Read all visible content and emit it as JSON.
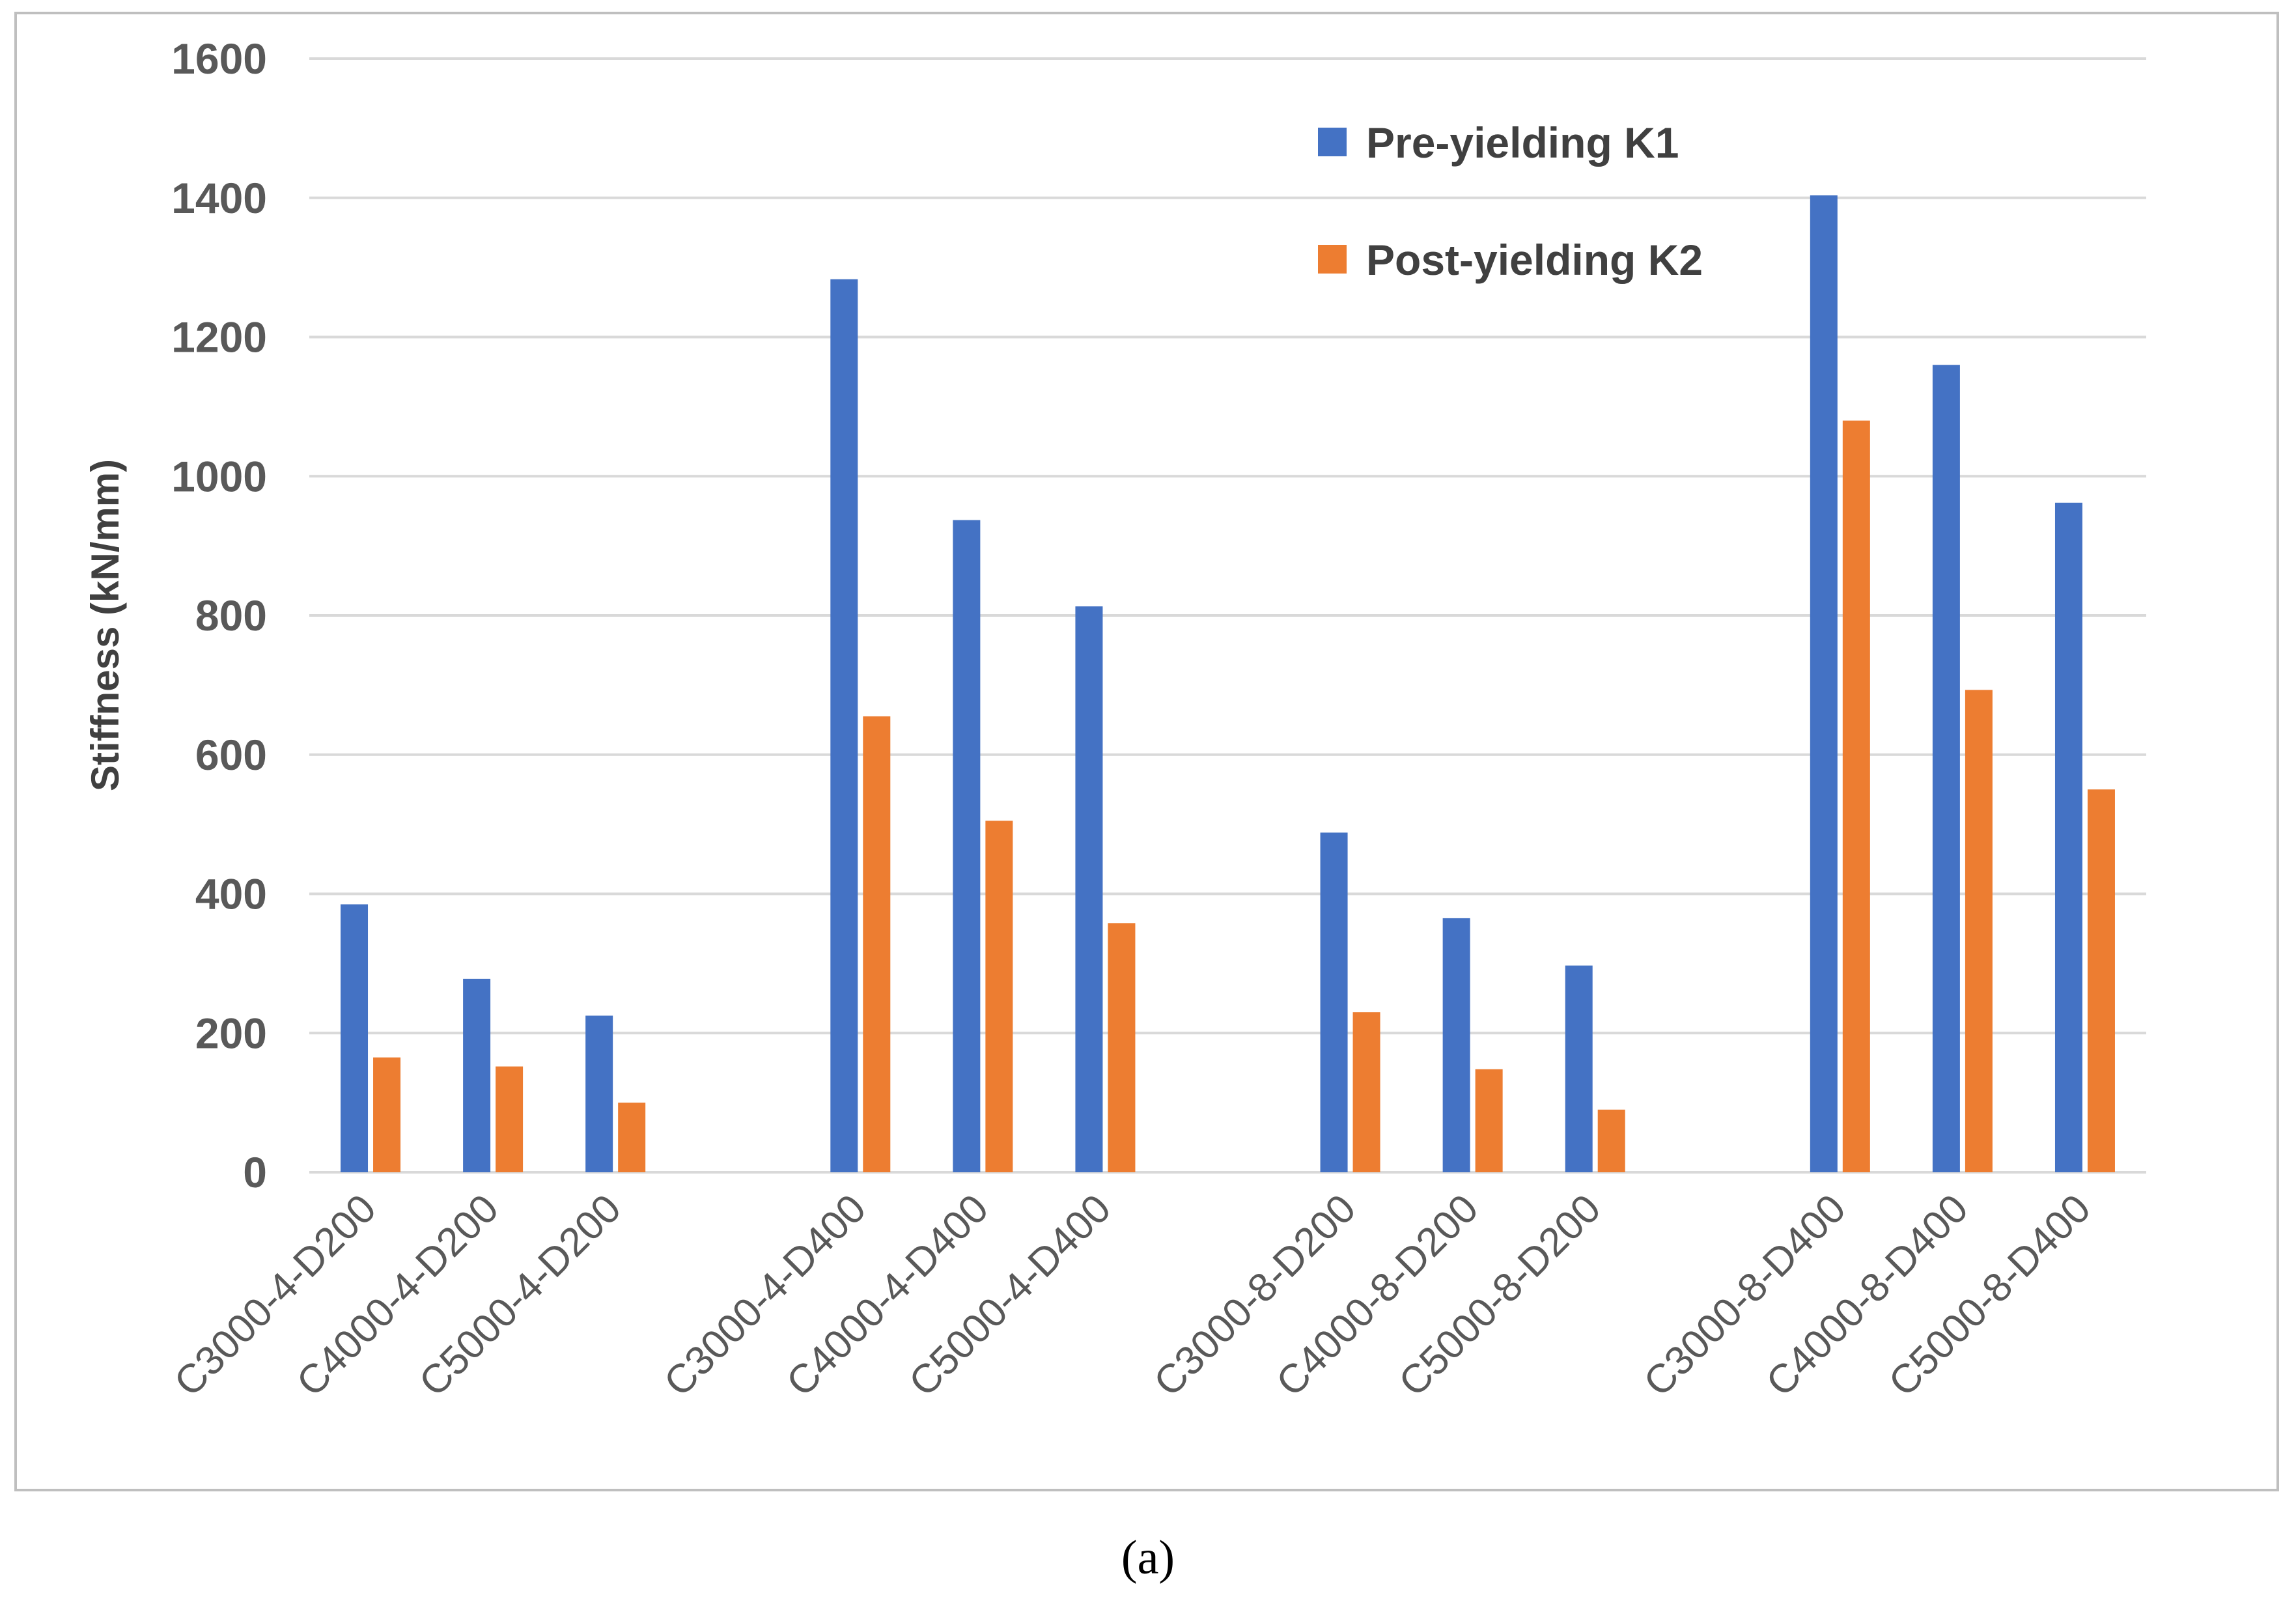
{
  "chart_data": {
    "type": "bar",
    "title": "",
    "xlabel": "",
    "ylabel": "Stiffness (kN/mm)",
    "ylim": [
      0,
      1600
    ],
    "yticks": [
      0,
      200,
      400,
      600,
      800,
      1000,
      1200,
      1400,
      1600
    ],
    "grid": true,
    "legend_position": "top-right",
    "groups": [
      [
        "C3000-4-D200",
        "C4000-4-D200",
        "C5000-4-D200"
      ],
      [
        "C3000-4-D400",
        "C4000-4-D400",
        "C5000-4-D400"
      ],
      [
        "C3000-8-D200",
        "C4000-8-D200",
        "C5000-8-D200"
      ],
      [
        "C3000-8-D400",
        "C4000-8-D400",
        "C5000-8-D400"
      ]
    ],
    "categories": [
      "C3000-4-D200",
      "C4000-4-D200",
      "C5000-4-D200",
      "C3000-4-D400",
      "C4000-4-D400",
      "C5000-4-D400",
      "C3000-8-D200",
      "C4000-8-D200",
      "C5000-8-D200",
      "C3000-8-D400",
      "C4000-8-D400",
      "C5000-8-D400"
    ],
    "series": [
      {
        "name": "Pre-yielding K1",
        "color": "#4472c4",
        "values": [
          385,
          278,
          225,
          1283,
          937,
          813,
          488,
          365,
          297,
          1478,
          1160,
          962
        ]
      },
      {
        "name": "Post-yielding K2",
        "color": "#ed7d31",
        "values": [
          165,
          152,
          100,
          655,
          505,
          358,
          230,
          148,
          90,
          1080,
          693,
          550
        ]
      }
    ]
  },
  "caption": "(a)"
}
